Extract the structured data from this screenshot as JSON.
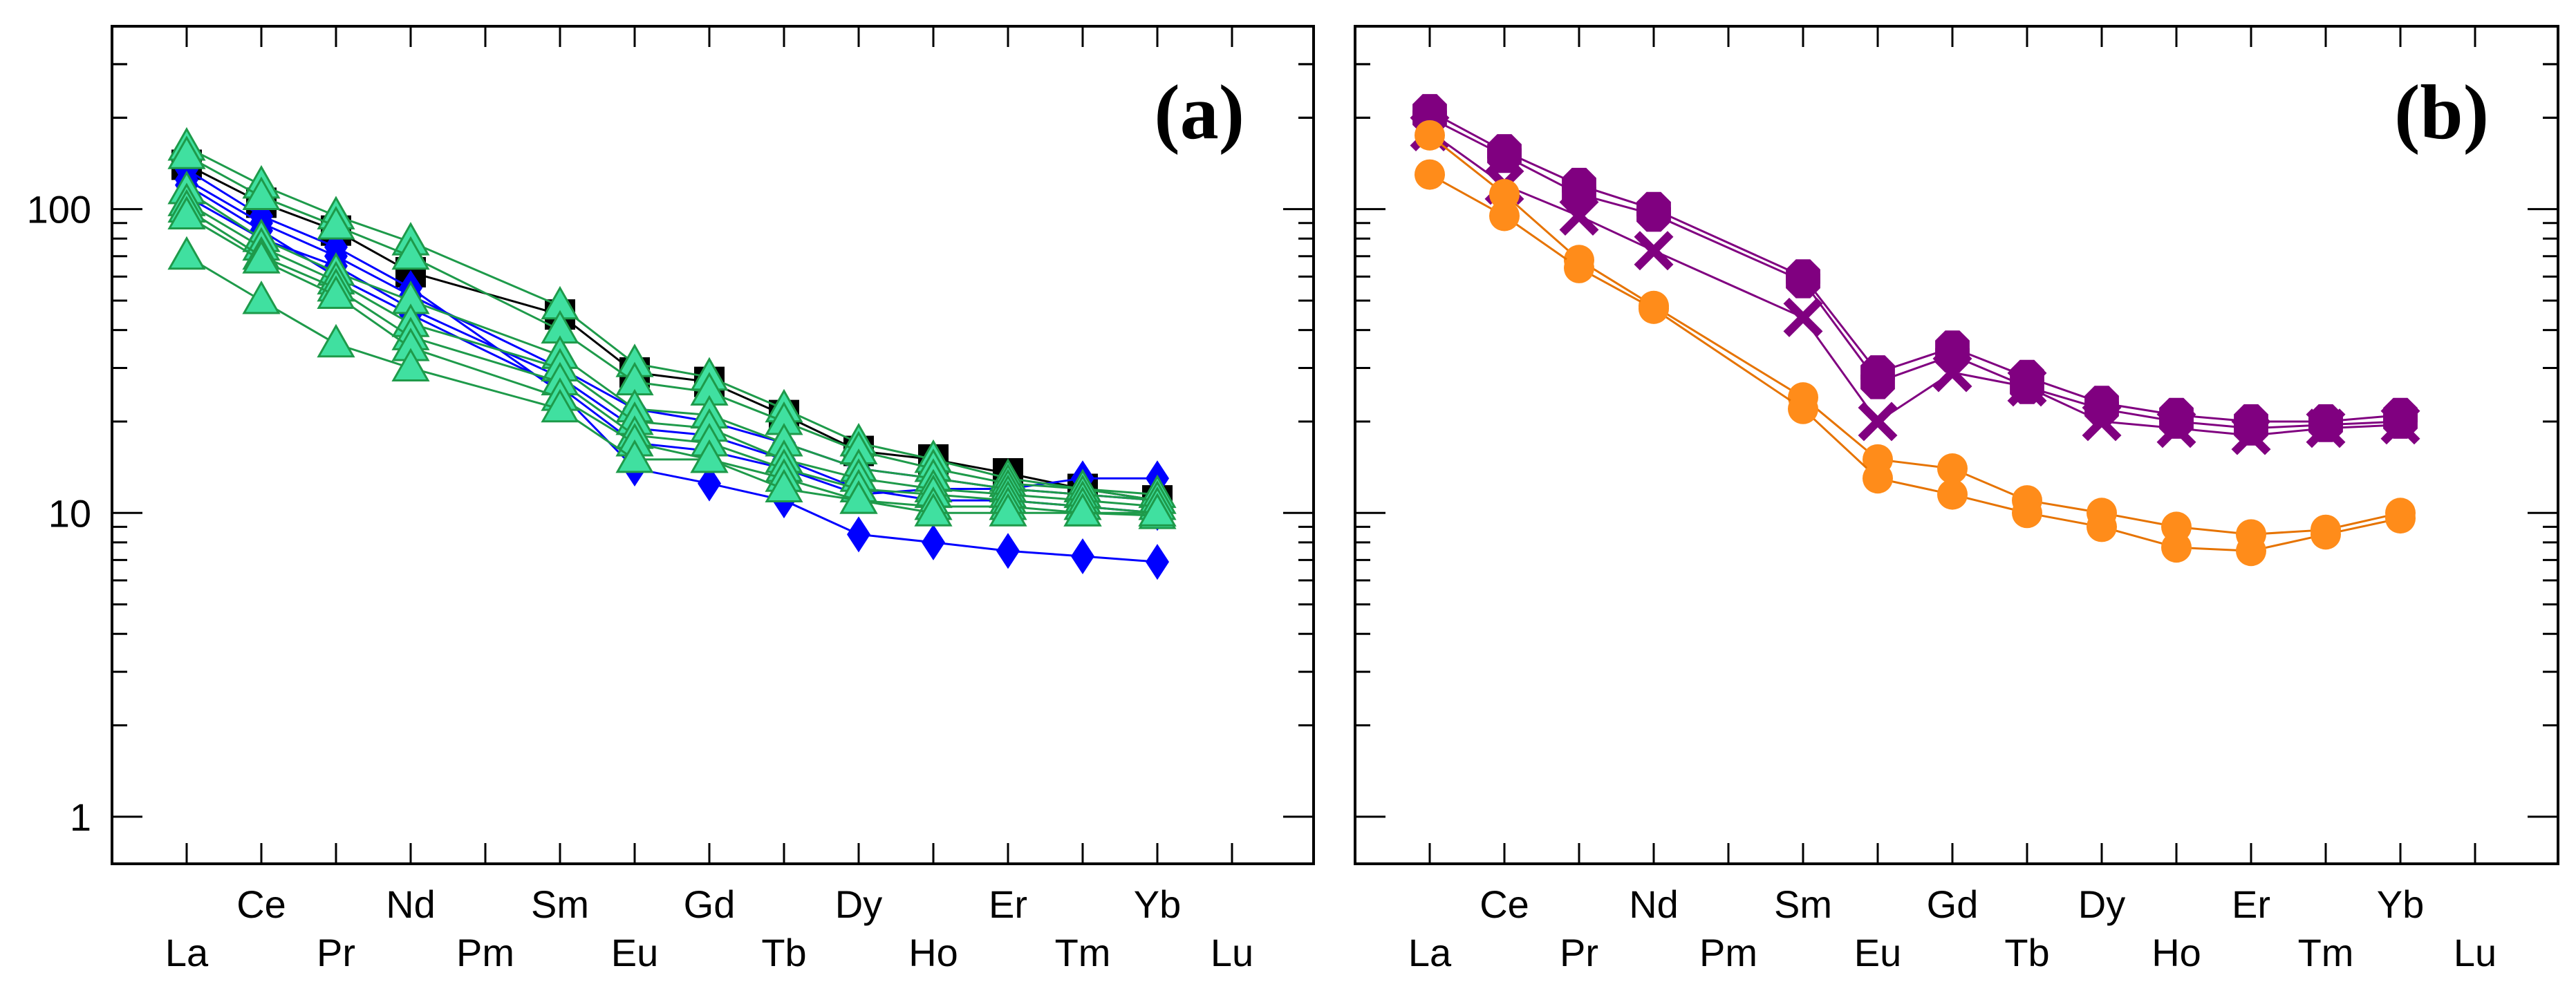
{
  "chart_data": [
    {
      "type": "line",
      "title": "",
      "panel_label": "(a)",
      "xlabel": "",
      "ylabel": "",
      "yscale": "log",
      "ylim": [
        0.7,
        400
      ],
      "yticks_labeled": [
        "1",
        "10",
        "100"
      ],
      "categories": [
        "La",
        "Ce",
        "Pr",
        "Nd",
        "Pm",
        "Sm",
        "Eu",
        "Gd",
        "Tb",
        "Dy",
        "Ho",
        "Er",
        "Tm",
        "Yb",
        "Lu"
      ],
      "series": [
        {
          "name": "square-1",
          "color": "#000000",
          "line_color": "#000000",
          "marker": "square",
          "values": [
            140,
            105,
            85,
            62,
            null,
            45,
            29,
            27,
            21,
            16,
            15,
            13.5,
            12,
            11,
            null
          ]
        },
        {
          "name": "diamond-1",
          "color": "#0000ff",
          "line_color": "#0000ff",
          "marker": "diamond",
          "values": [
            135,
            95,
            75,
            55,
            null,
            25,
            14,
            12.5,
            11,
            8.5,
            8,
            7.5,
            7.2,
            6.9,
            null
          ]
        },
        {
          "name": "diamond-2",
          "color": "#0000ff",
          "line_color": "#0000ff",
          "marker": "diamond",
          "values": [
            125,
            90,
            70,
            52,
            null,
            30,
            22,
            20,
            17,
            14,
            13,
            12,
            11.5,
            11,
            null
          ]
        },
        {
          "name": "diamond-3",
          "color": "#0000ff",
          "line_color": "#0000ff",
          "marker": "diamond",
          "values": [
            110,
            80,
            65,
            47,
            null,
            28,
            19,
            18,
            15,
            12,
            11,
            11,
            10.5,
            10,
            null
          ]
        },
        {
          "name": "diamond-4",
          "color": "#0000ff",
          "line_color": "#0000ff",
          "marker": "diamond",
          "values": [
            120,
            85,
            60,
            45,
            null,
            26,
            17,
            16,
            14,
            11.5,
            12,
            12,
            13,
            13,
            null
          ]
        },
        {
          "name": "triangle-1",
          "color": "#40e0a0",
          "line_color": "#1e9a4a",
          "marker": "triangle",
          "values": [
            160,
            120,
            95,
            78,
            null,
            48,
            31,
            28,
            22,
            17,
            15,
            13,
            12,
            11,
            null
          ]
        },
        {
          "name": "triangle-2",
          "color": "#40e0a0",
          "line_color": "#1e9a4a",
          "marker": "triangle",
          "values": [
            150,
            110,
            88,
            70,
            null,
            40,
            27,
            25,
            20,
            16,
            14,
            12.5,
            12,
            11.5,
            null
          ]
        },
        {
          "name": "triangle-3",
          "color": "#40e0a0",
          "line_color": "#1e9a4a",
          "marker": "triangle",
          "values": [
            115,
            80,
            62,
            50,
            null,
            33,
            22,
            21,
            17,
            14,
            13,
            12,
            11.5,
            11,
            null
          ]
        },
        {
          "name": "triangle-4",
          "color": "#40e0a0",
          "line_color": "#1e9a4a",
          "marker": "triangle",
          "values": [
            105,
            75,
            58,
            42,
            null,
            30,
            20,
            19,
            15,
            13,
            12,
            11.5,
            11,
            10.5,
            null
          ]
        },
        {
          "name": "triangle-5",
          "color": "#40e0a0",
          "line_color": "#1e9a4a",
          "marker": "triangle",
          "values": [
            100,
            70,
            55,
            38,
            null,
            27,
            18,
            17,
            14,
            12,
            11.5,
            11,
            10.5,
            10,
            null
          ]
        },
        {
          "name": "triangle-6",
          "color": "#40e0a0",
          "line_color": "#1e9a4a",
          "marker": "triangle",
          "values": [
            95,
            68,
            52,
            35,
            null,
            24,
            17,
            15,
            13,
            11,
            10.5,
            10.5,
            10,
            9.8,
            null
          ]
        },
        {
          "name": "triangle-7",
          "color": "#40e0a0",
          "line_color": "#1e9a4a",
          "marker": "triangle",
          "values": [
            70,
            50,
            36,
            30,
            null,
            22,
            15,
            15,
            12,
            11,
            10,
            10,
            10,
            10,
            null
          ]
        }
      ]
    },
    {
      "type": "line",
      "title": "",
      "panel_label": "(b)",
      "xlabel": "",
      "ylabel": "",
      "yscale": "log",
      "ylim": [
        0.7,
        400
      ],
      "categories": [
        "La",
        "Ce",
        "Pr",
        "Nd",
        "Pm",
        "Sm",
        "Eu",
        "Gd",
        "Tb",
        "Dy",
        "Ho",
        "Er",
        "Tm",
        "Yb",
        "Lu"
      ],
      "series": [
        {
          "name": "octagon-1",
          "color": "#800080",
          "line_color": "#800080",
          "marker": "octagon",
          "values": [
            210,
            155,
            120,
            100,
            null,
            60,
            29,
            35,
            28,
            23,
            21,
            20,
            20,
            21,
            null
          ]
        },
        {
          "name": "octagon-2",
          "color": "#800080",
          "line_color": "#800080",
          "marker": "octagon",
          "values": [
            200,
            150,
            112,
            96,
            null,
            58,
            27,
            33,
            26,
            22,
            20,
            19,
            19.5,
            20,
            null
          ]
        },
        {
          "name": "cross-1",
          "color": "#800080",
          "line_color": "#800080",
          "marker": "cross",
          "values": [
            180,
            120,
            95,
            73,
            null,
            44,
            20,
            29,
            26,
            20,
            19,
            18,
            19,
            19.5,
            null
          ]
        },
        {
          "name": "circle-1",
          "color": "#ff8c1a",
          "line_color": "#e67300",
          "marker": "circle",
          "values": [
            175,
            112,
            68,
            48,
            null,
            24,
            15,
            14,
            11,
            10,
            9,
            8.5,
            8.8,
            10,
            null
          ]
        },
        {
          "name": "circle-2",
          "color": "#ff8c1a",
          "line_color": "#e67300",
          "marker": "circle",
          "values": [
            130,
            95,
            64,
            47,
            null,
            22,
            13,
            11.5,
            10,
            9,
            7.7,
            7.5,
            8.5,
            9.6,
            null
          ]
        }
      ]
    }
  ]
}
